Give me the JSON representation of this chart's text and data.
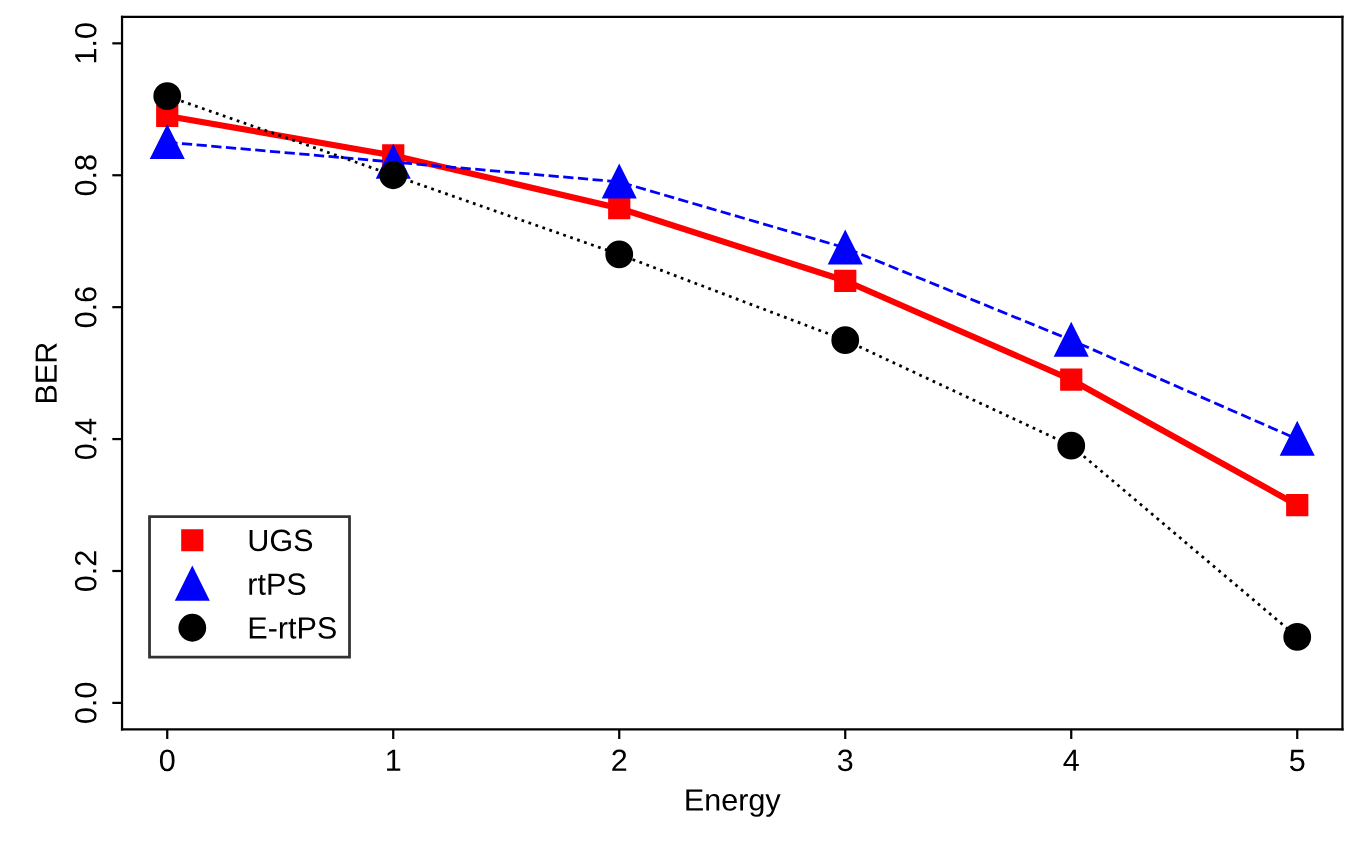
{
  "chart_data": {
    "type": "line",
    "xlabel": "Energy",
    "ylabel": "BER",
    "x": [
      0,
      1,
      2,
      3,
      4,
      5
    ],
    "series": [
      {
        "name": "UGS",
        "color": "#ff0000",
        "marker": "square",
        "line_style": "solid",
        "values": [
          0.89,
          0.83,
          0.75,
          0.64,
          0.49,
          0.3
        ]
      },
      {
        "name": "rtPS",
        "color": "#0000ff",
        "marker": "triangle",
        "line_style": "dashed",
        "values": [
          0.85,
          0.82,
          0.79,
          0.69,
          0.55,
          0.4
        ]
      },
      {
        "name": "E-rtPS",
        "color": "#000000",
        "marker": "circle",
        "line_style": "dotted",
        "values": [
          0.92,
          0.8,
          0.68,
          0.55,
          0.39,
          0.1
        ]
      }
    ],
    "xlim": [
      -0.2,
      5.2
    ],
    "ylim": [
      -0.04,
      1.04
    ],
    "xticks": [
      0,
      1,
      2,
      3,
      4,
      5
    ],
    "yticks": [
      {
        "value": 0,
        "label": "0.0"
      },
      0.2,
      0.4,
      0.6,
      0.8,
      {
        "value": 1,
        "label": "1.0"
      }
    ],
    "grid": false,
    "legend": "bottom left"
  }
}
